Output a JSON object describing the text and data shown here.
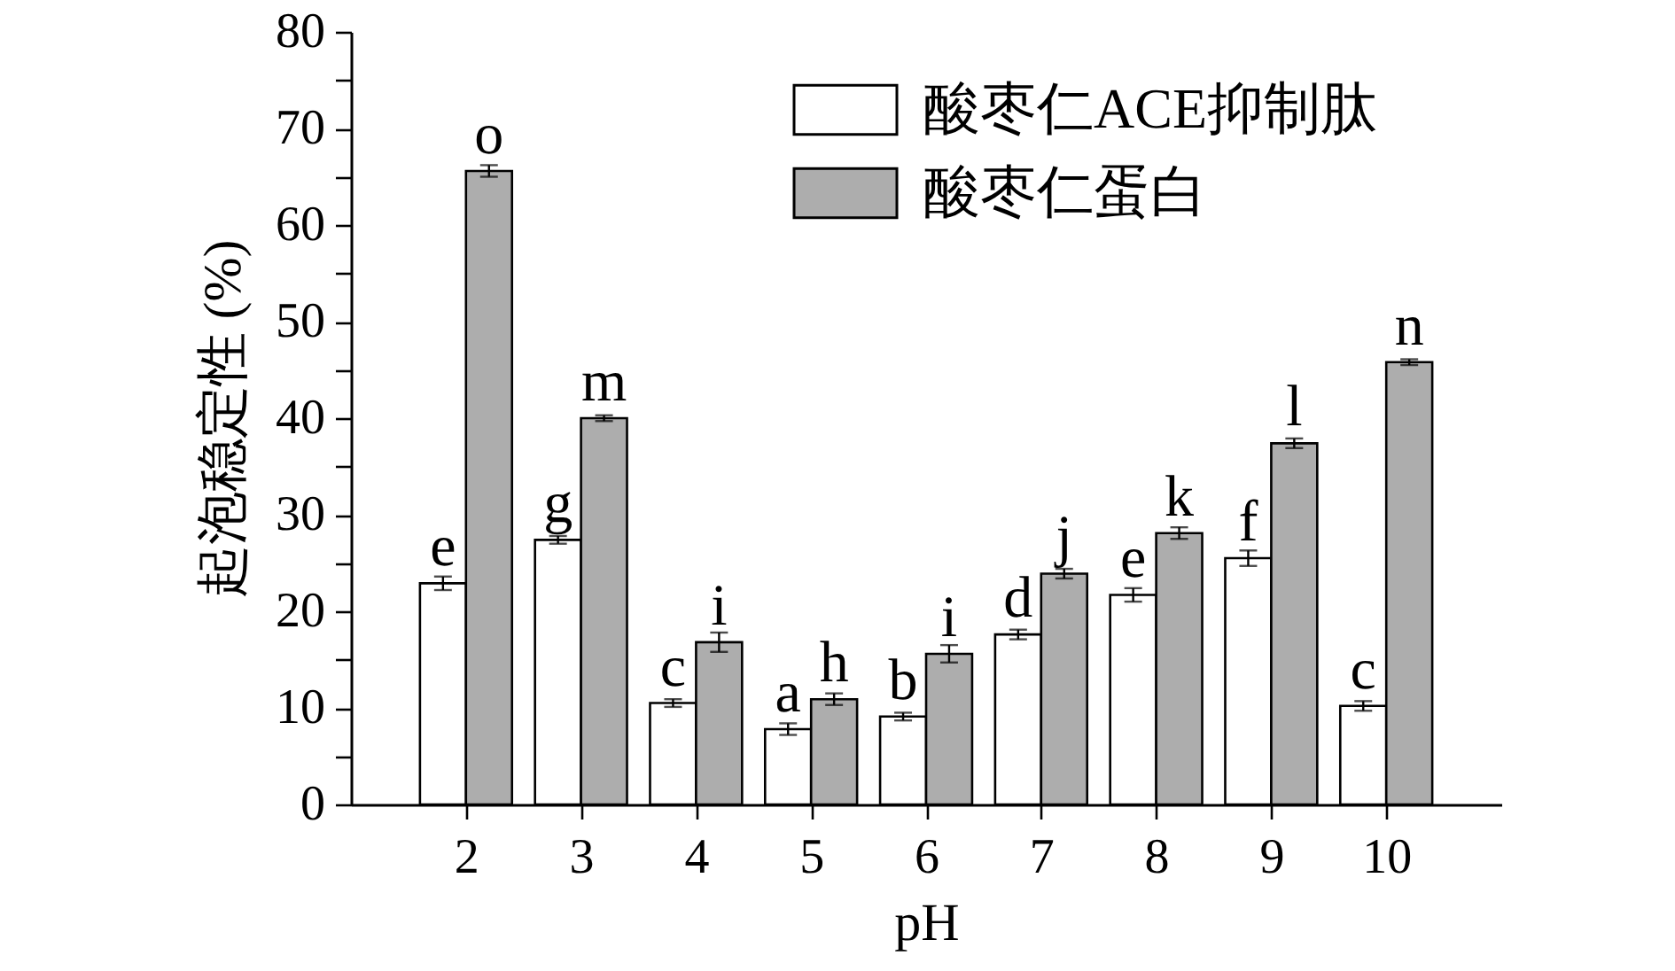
{
  "chart_data": {
    "type": "bar",
    "xlabel": "pH",
    "ylabel": "起泡稳定性 (%)",
    "x": [
      2,
      3,
      4,
      5,
      6,
      7,
      8,
      9,
      10
    ],
    "xlim": [
      1,
      11
    ],
    "xticks": [
      2,
      3,
      4,
      5,
      6,
      7,
      8,
      9,
      10
    ],
    "ylim": [
      0,
      80
    ],
    "yticks": [
      0,
      {
        "value": 5,
        "label": null
      },
      10,
      {
        "value": 15,
        "label": null
      },
      20,
      {
        "value": 25,
        "label": null
      },
      30,
      {
        "value": 35,
        "label": null
      },
      40,
      {
        "value": 45,
        "label": null
      },
      50,
      {
        "value": 55,
        "label": null
      },
      60,
      {
        "value": 65,
        "label": null
      },
      70,
      {
        "value": 75,
        "label": null
      },
      80
    ],
    "series": [
      {
        "name": "酸枣仁ACE抑制肽",
        "color": "#ffffff",
        "values": [
          22.9,
          27.4,
          10.5,
          7.8,
          9.1,
          17.6,
          21.7,
          25.5,
          10.2
        ],
        "errors": [
          0.7,
          0.4,
          0.4,
          0.6,
          0.4,
          0.5,
          0.7,
          0.8,
          0.5
        ]
      },
      {
        "name": "酸枣仁蛋白",
        "color": "#adadad",
        "values": [
          65.6,
          40.0,
          16.8,
          10.9,
          15.6,
          23.9,
          28.1,
          37.4,
          45.8
        ],
        "errors": [
          0.6,
          0.3,
          1.0,
          0.6,
          0.9,
          0.5,
          0.6,
          0.5,
          0.3
        ]
      }
    ],
    "annotations": [
      {
        "text": "e",
        "x": 1.8,
        "y": 22.9
      },
      {
        "text": "o",
        "x": 2.2,
        "y": 65.6
      },
      {
        "text": "g",
        "x": 2.8,
        "y": 27.4
      },
      {
        "text": "m",
        "x": 3.2,
        "y": 40.0
      },
      {
        "text": "c",
        "x": 3.8,
        "y": 10.5
      },
      {
        "text": "i",
        "x": 4.2,
        "y": 16.8
      },
      {
        "text": "a",
        "x": 4.8,
        "y": 7.8
      },
      {
        "text": "h",
        "x": 5.2,
        "y": 10.9
      },
      {
        "text": "b",
        "x": 5.8,
        "y": 9.1
      },
      {
        "text": "i",
        "x": 6.2,
        "y": 15.6
      },
      {
        "text": "d",
        "x": 6.8,
        "y": 17.6
      },
      {
        "text": "j",
        "x": 7.2,
        "y": 23.9
      },
      {
        "text": "e",
        "x": 7.8,
        "y": 21.7
      },
      {
        "text": "k",
        "x": 8.2,
        "y": 28.1
      },
      {
        "text": "f",
        "x": 8.8,
        "y": 25.5
      },
      {
        "text": "l",
        "x": 9.2,
        "y": 37.4
      },
      {
        "text": "c",
        "x": 9.8,
        "y": 10.2
      },
      {
        "text": "n",
        "x": 10.2,
        "y": 45.8
      }
    ],
    "legend": "top right",
    "grid": false
  }
}
